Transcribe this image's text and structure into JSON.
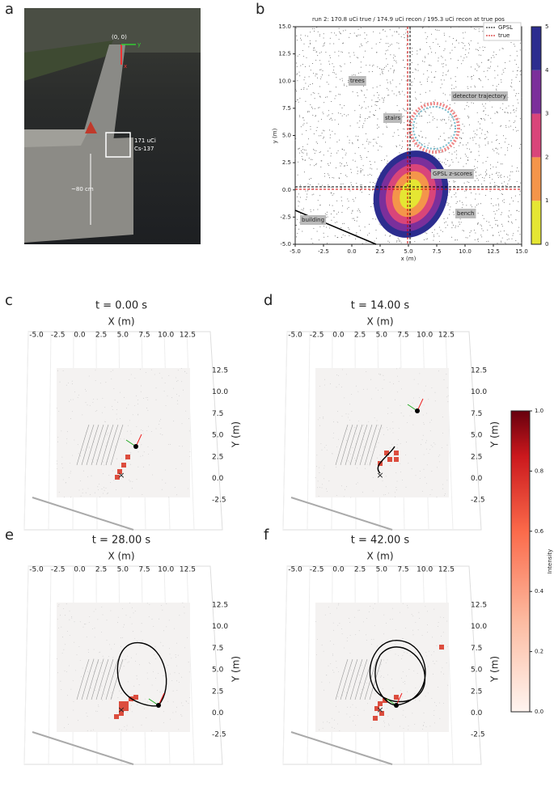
{
  "panels": {
    "a": {
      "label": "a",
      "origin": "(0, 0)",
      "axis_y": "y",
      "axis_x": "x",
      "source_activity": "171 uCi",
      "source_isotope": "Cs-137",
      "height": "~80 cm"
    },
    "b": {
      "label": "b",
      "title": "run 2: 170.8 uCi true / 174.9 uCi recon / 195.3 uCi recon at true pos",
      "xlabel": "x (m)",
      "ylabel": "y (m)",
      "xticks": [
        "-5.0",
        "-2.5",
        "0.0",
        "2.5",
        "5.0",
        "7.5",
        "10.0",
        "12.5",
        "15.0"
      ],
      "yticks": [
        "-5.0",
        "-2.5",
        "0.0",
        "2.5",
        "5.0",
        "7.5",
        "10.0",
        "12.5",
        "15.0"
      ],
      "legend": [
        "GPSL",
        "true"
      ],
      "annotations": [
        "trees",
        "stairs",
        "detector trajectory",
        "GPSL z-scores",
        "building",
        "bench"
      ],
      "colorbar_ticks": [
        "0",
        "1",
        "2",
        "3",
        "4",
        "5"
      ]
    },
    "frames": [
      {
        "label": "c",
        "title": "t = 0.00 s"
      },
      {
        "label": "d",
        "title": "t = 14.00 s"
      },
      {
        "label": "e",
        "title": "t = 28.00 s"
      },
      {
        "label": "f",
        "title": "t = 42.00 s"
      }
    ],
    "frame_axes": {
      "xlabel": "X (m)",
      "ylabel": "Y (m)",
      "xticks": [
        "-5.0",
        "-2.5",
        "0.0",
        "2.5",
        "5.0",
        "7.5",
        "10.0",
        "12.5"
      ],
      "yticks": [
        "12.5",
        "10.0",
        "7.5",
        "5.0",
        "2.5",
        "0.0",
        "-2.5"
      ]
    },
    "intensity_colorbar": {
      "label": "Intensity",
      "ticks": [
        "1.0",
        "0.8",
        "0.6",
        "0.4",
        "0.2",
        "0.0"
      ]
    }
  }
}
